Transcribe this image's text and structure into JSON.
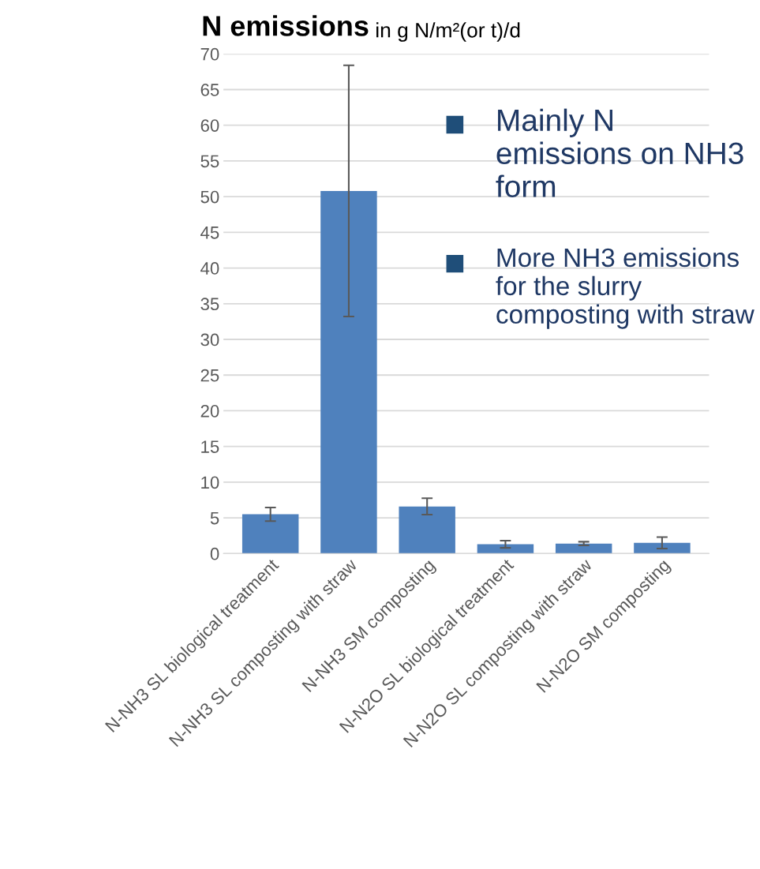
{
  "chart_data": {
    "type": "bar",
    "title": "N emissions",
    "subtitle": "in g N/m²(or t)/d",
    "categories": [
      "N-NH3 SL biological treatment",
      "N-NH3 SL composting with straw",
      "N-NH3 SM composting",
      "N-N2O SL biological treatment",
      "N-N2O SL composting with straw",
      "N-N2O SM composting"
    ],
    "values": [
      5.5,
      50.8,
      6.6,
      1.3,
      1.4,
      1.5
    ],
    "errors": [
      0.95,
      17.6,
      1.15,
      0.5,
      0.25,
      0.8
    ],
    "color": "#4f81bd",
    "ylim": [
      0,
      70
    ],
    "yticks": [
      0,
      5,
      10,
      15,
      20,
      25,
      30,
      35,
      40,
      45,
      50,
      55,
      60,
      65,
      70
    ],
    "grid": "y",
    "annotations": [
      "Mainly N emissions on NH3 form",
      "More NH3 emissions for the slurry composting with straw"
    ]
  }
}
